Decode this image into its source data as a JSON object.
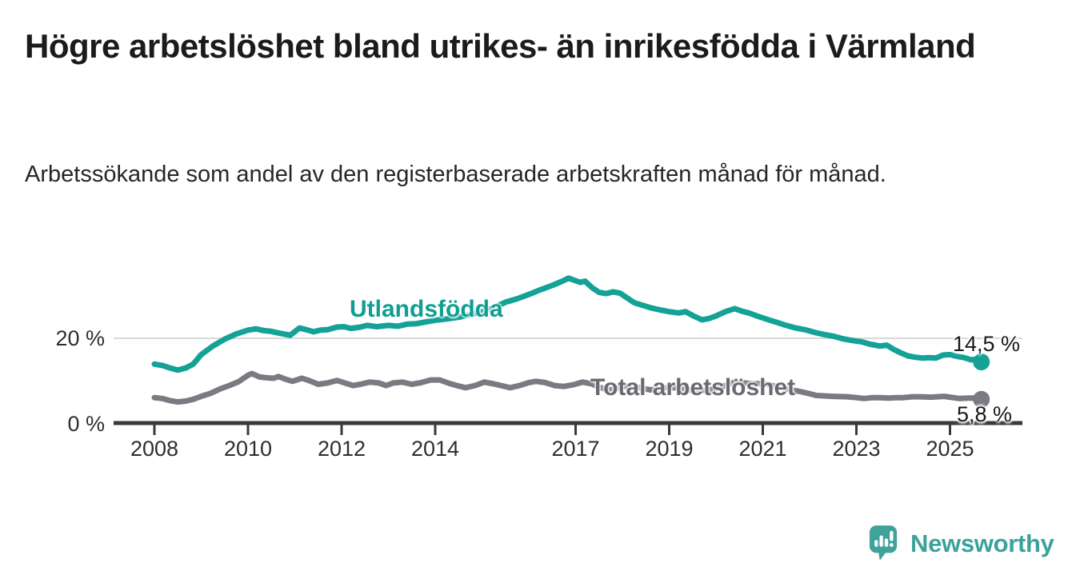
{
  "footer": {
    "brand": "Newsworthy"
  },
  "chart_data": {
    "type": "line",
    "title": "Högre arbetslöshet bland utrikes- än inrikesfödda i Värmland",
    "subtitle": "Arbetssökande som andel av den registerbaserade arbetskraften månad för månad.",
    "unit": "%",
    "grid": "single horizontal gridline at 20 %",
    "legend_position": "inline labels on lines",
    "x_axis": {
      "ticks": [
        2008,
        2010,
        2012,
        2014,
        2017,
        2019,
        2021,
        2023,
        2025
      ],
      "tick_labels": [
        "2008",
        "2010",
        "2012",
        "2014",
        "2017",
        "2019",
        "2021",
        "2023",
        "2025"
      ],
      "range": [
        2007.1,
        2026.5
      ]
    },
    "y_axis": {
      "ticks": [
        0,
        20
      ],
      "tick_labels": [
        "0 %",
        "20 %"
      ],
      "range": [
        0,
        36
      ]
    },
    "series": [
      {
        "name": "Utlandsfödda",
        "color": "#14a296",
        "end_value": 14.5,
        "end_label": "14,5 %",
        "points": [
          [
            2008.0,
            14.0
          ],
          [
            2008.17,
            13.7
          ],
          [
            2008.33,
            13.1
          ],
          [
            2008.5,
            12.6
          ],
          [
            2008.67,
            13.1
          ],
          [
            2008.83,
            14.0
          ],
          [
            2009.0,
            16.2
          ],
          [
            2009.25,
            18.2
          ],
          [
            2009.5,
            19.8
          ],
          [
            2009.75,
            21.0
          ],
          [
            2010.0,
            21.9
          ],
          [
            2010.17,
            22.2
          ],
          [
            2010.33,
            21.8
          ],
          [
            2010.5,
            21.6
          ],
          [
            2010.67,
            21.2
          ],
          [
            2010.9,
            20.7
          ],
          [
            2011.1,
            22.4
          ],
          [
            2011.25,
            22.0
          ],
          [
            2011.4,
            21.5
          ],
          [
            2011.55,
            21.9
          ],
          [
            2011.7,
            22.0
          ],
          [
            2011.9,
            22.6
          ],
          [
            2012.05,
            22.7
          ],
          [
            2012.2,
            22.3
          ],
          [
            2012.4,
            22.6
          ],
          [
            2012.55,
            23.0
          ],
          [
            2012.75,
            22.7
          ],
          [
            2013.0,
            23.0
          ],
          [
            2013.2,
            22.8
          ],
          [
            2013.4,
            23.3
          ],
          [
            2013.6,
            23.4
          ],
          [
            2013.8,
            23.8
          ],
          [
            2014.0,
            24.2
          ],
          [
            2014.25,
            24.5
          ],
          [
            2014.5,
            24.9
          ],
          [
            2014.75,
            25.5
          ],
          [
            2015.0,
            26.2
          ],
          [
            2015.25,
            27.1
          ],
          [
            2015.5,
            28.4
          ],
          [
            2015.75,
            29.2
          ],
          [
            2016.0,
            30.2
          ],
          [
            2016.25,
            31.3
          ],
          [
            2016.5,
            32.3
          ],
          [
            2016.7,
            33.2
          ],
          [
            2016.85,
            34.0
          ],
          [
            2017.0,
            33.4
          ],
          [
            2017.1,
            33.0
          ],
          [
            2017.2,
            33.3
          ],
          [
            2017.35,
            31.8
          ],
          [
            2017.5,
            30.7
          ],
          [
            2017.65,
            30.4
          ],
          [
            2017.8,
            30.8
          ],
          [
            2017.95,
            30.5
          ],
          [
            2018.1,
            29.4
          ],
          [
            2018.25,
            28.3
          ],
          [
            2018.45,
            27.6
          ],
          [
            2018.6,
            27.1
          ],
          [
            2018.8,
            26.6
          ],
          [
            2019.0,
            26.2
          ],
          [
            2019.2,
            25.9
          ],
          [
            2019.35,
            26.2
          ],
          [
            2019.5,
            25.3
          ],
          [
            2019.7,
            24.3
          ],
          [
            2019.85,
            24.6
          ],
          [
            2020.0,
            25.2
          ],
          [
            2020.2,
            26.2
          ],
          [
            2020.4,
            26.9
          ],
          [
            2020.55,
            26.3
          ],
          [
            2020.7,
            25.9
          ],
          [
            2020.9,
            25.1
          ],
          [
            2021.1,
            24.4
          ],
          [
            2021.3,
            23.7
          ],
          [
            2021.5,
            23.0
          ],
          [
            2021.7,
            22.4
          ],
          [
            2021.9,
            22.0
          ],
          [
            2022.1,
            21.4
          ],
          [
            2022.3,
            20.9
          ],
          [
            2022.5,
            20.5
          ],
          [
            2022.7,
            19.9
          ],
          [
            2022.9,
            19.5
          ],
          [
            2023.1,
            19.2
          ],
          [
            2023.3,
            18.6
          ],
          [
            2023.5,
            18.2
          ],
          [
            2023.65,
            18.4
          ],
          [
            2023.8,
            17.4
          ],
          [
            2023.95,
            16.6
          ],
          [
            2024.1,
            15.9
          ],
          [
            2024.25,
            15.6
          ],
          [
            2024.4,
            15.4
          ],
          [
            2024.55,
            15.5
          ],
          [
            2024.7,
            15.4
          ],
          [
            2024.85,
            16.1
          ],
          [
            2025.0,
            16.2
          ],
          [
            2025.15,
            15.8
          ],
          [
            2025.3,
            15.5
          ],
          [
            2025.45,
            15.0
          ],
          [
            2025.55,
            15.1
          ],
          [
            2025.67,
            14.5
          ]
        ]
      },
      {
        "name": "Total arbetslöshet",
        "color": "#7b7a82",
        "end_value": 5.8,
        "end_label": "5,8 %",
        "points": [
          [
            2008.0,
            6.2
          ],
          [
            2008.17,
            6.0
          ],
          [
            2008.33,
            5.5
          ],
          [
            2008.5,
            5.2
          ],
          [
            2008.67,
            5.4
          ],
          [
            2008.83,
            5.8
          ],
          [
            2009.0,
            6.5
          ],
          [
            2009.2,
            7.2
          ],
          [
            2009.4,
            8.2
          ],
          [
            2009.6,
            9.0
          ],
          [
            2009.8,
            9.9
          ],
          [
            2010.0,
            11.4
          ],
          [
            2010.08,
            11.8
          ],
          [
            2010.25,
            11.0
          ],
          [
            2010.4,
            10.8
          ],
          [
            2010.55,
            10.7
          ],
          [
            2010.65,
            11.1
          ],
          [
            2010.8,
            10.5
          ],
          [
            2010.95,
            10.0
          ],
          [
            2011.15,
            10.7
          ],
          [
            2011.3,
            10.2
          ],
          [
            2011.5,
            9.3
          ],
          [
            2011.7,
            9.6
          ],
          [
            2011.9,
            10.2
          ],
          [
            2012.1,
            9.5
          ],
          [
            2012.25,
            9.0
          ],
          [
            2012.4,
            9.3
          ],
          [
            2012.6,
            9.8
          ],
          [
            2012.8,
            9.6
          ],
          [
            2012.95,
            9.0
          ],
          [
            2013.1,
            9.6
          ],
          [
            2013.3,
            9.8
          ],
          [
            2013.5,
            9.3
          ],
          [
            2013.7,
            9.7
          ],
          [
            2013.9,
            10.3
          ],
          [
            2014.1,
            10.3
          ],
          [
            2014.3,
            9.5
          ],
          [
            2014.5,
            8.9
          ],
          [
            2014.65,
            8.5
          ],
          [
            2014.85,
            9.0
          ],
          [
            2015.05,
            9.8
          ],
          [
            2015.25,
            9.4
          ],
          [
            2015.45,
            8.9
          ],
          [
            2015.6,
            8.5
          ],
          [
            2015.8,
            9.0
          ],
          [
            2016.0,
            9.7
          ],
          [
            2016.15,
            10.0
          ],
          [
            2016.35,
            9.7
          ],
          [
            2016.55,
            9.0
          ],
          [
            2016.75,
            8.8
          ],
          [
            2016.95,
            9.2
          ],
          [
            2017.15,
            9.8
          ],
          [
            2017.35,
            9.4
          ],
          [
            2017.5,
            8.6
          ],
          [
            2017.65,
            8.2
          ],
          [
            2017.8,
            8.0
          ],
          [
            2018.0,
            8.8
          ],
          [
            2018.2,
            8.9
          ],
          [
            2018.4,
            8.4
          ],
          [
            2018.6,
            8.0
          ],
          [
            2018.8,
            8.2
          ],
          [
            2019.0,
            8.6
          ],
          [
            2019.2,
            8.4
          ],
          [
            2019.5,
            7.9
          ],
          [
            2019.8,
            7.9
          ],
          [
            2020.0,
            8.3
          ],
          [
            2020.2,
            9.0
          ],
          [
            2020.4,
            9.8
          ],
          [
            2020.6,
            9.6
          ],
          [
            2020.8,
            9.4
          ],
          [
            2021.0,
            9.5
          ],
          [
            2021.2,
            9.0
          ],
          [
            2021.4,
            8.5
          ],
          [
            2021.6,
            8.0
          ],
          [
            2021.8,
            7.6
          ],
          [
            2022.0,
            7.1
          ],
          [
            2022.14,
            6.7
          ],
          [
            2022.3,
            6.6
          ],
          [
            2022.5,
            6.5
          ],
          [
            2022.8,
            6.4
          ],
          [
            2023.0,
            6.2
          ],
          [
            2023.16,
            6.0
          ],
          [
            2023.35,
            6.2
          ],
          [
            2023.5,
            6.2
          ],
          [
            2023.7,
            6.1
          ],
          [
            2023.85,
            6.2
          ],
          [
            2024.0,
            6.2
          ],
          [
            2024.2,
            6.4
          ],
          [
            2024.36,
            6.4
          ],
          [
            2024.6,
            6.3
          ],
          [
            2024.87,
            6.5
          ],
          [
            2025.0,
            6.3
          ],
          [
            2025.2,
            6.0
          ],
          [
            2025.4,
            6.1
          ],
          [
            2025.55,
            6.1
          ],
          [
            2025.67,
            5.8
          ]
        ]
      }
    ]
  }
}
